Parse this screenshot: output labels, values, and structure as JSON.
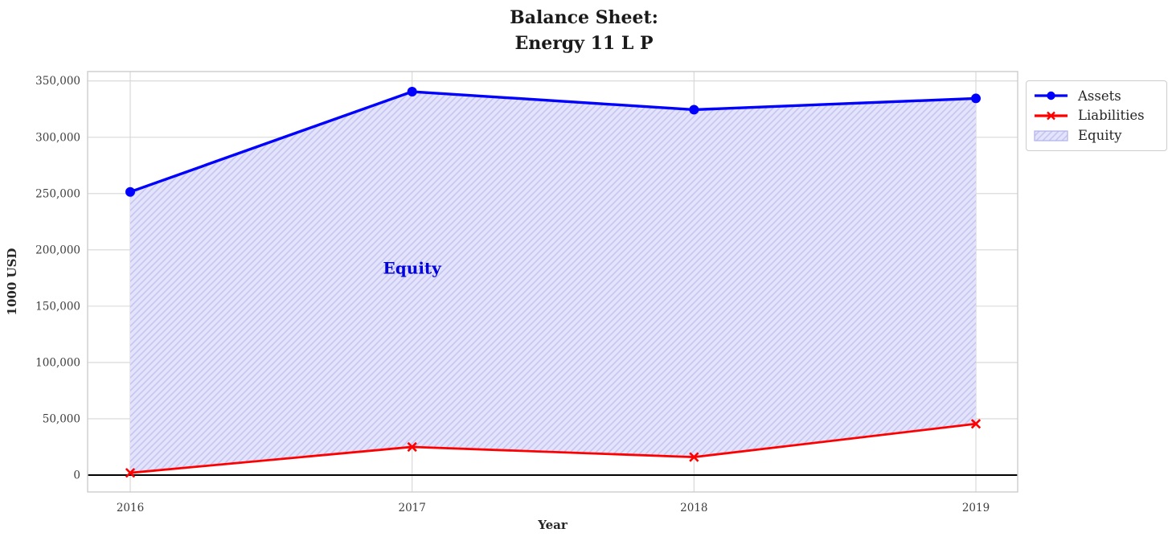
{
  "title": {
    "line1": "Balance Sheet:",
    "line2": "Energy 11 L P"
  },
  "chart_data": {
    "type": "line",
    "x": [
      2016,
      2017,
      2018,
      2019
    ],
    "series": [
      {
        "name": "Assets",
        "color": "#0000ff",
        "marker": "circle",
        "values": [
          251500,
          340500,
          324500,
          334500
        ]
      },
      {
        "name": "Liabilities",
        "color": "#ff0000",
        "marker": "x",
        "values": [
          2000,
          25000,
          16000,
          45500
        ]
      }
    ],
    "area": {
      "name": "Equity",
      "between": [
        "Assets",
        "Liabilities"
      ],
      "fill": "#e3e3fb",
      "hatch": "/",
      "hatch_color": "#c6c6f0",
      "edge_color": "#b0b0e8"
    },
    "annotation": {
      "text": "Equity",
      "x": 2017,
      "y": 184000,
      "color": "#0000dd"
    },
    "xlabel": "Year",
    "ylabel": "1000 USD",
    "ylim": [
      -15000,
      358500
    ],
    "yticks": [
      0,
      50000,
      100000,
      150000,
      200000,
      250000,
      300000,
      350000
    ],
    "ytick_labels": [
      "0",
      "50,000",
      "100,000",
      "150,000",
      "200,000",
      "250,000",
      "300,000",
      "350,000"
    ],
    "xtick_labels": [
      "2016",
      "2017",
      "2018",
      "2019"
    ],
    "zero_line": 0,
    "grid": true,
    "legend_position": "upper right outside",
    "legend": [
      "Assets",
      "Liabilities",
      "Equity"
    ]
  },
  "colors": {
    "grid": "#d6d6d6",
    "spine": "#cccccc",
    "tick_text": "#3d3d3d",
    "axis_label_text": "#262626",
    "zero_line": "#000000"
  }
}
